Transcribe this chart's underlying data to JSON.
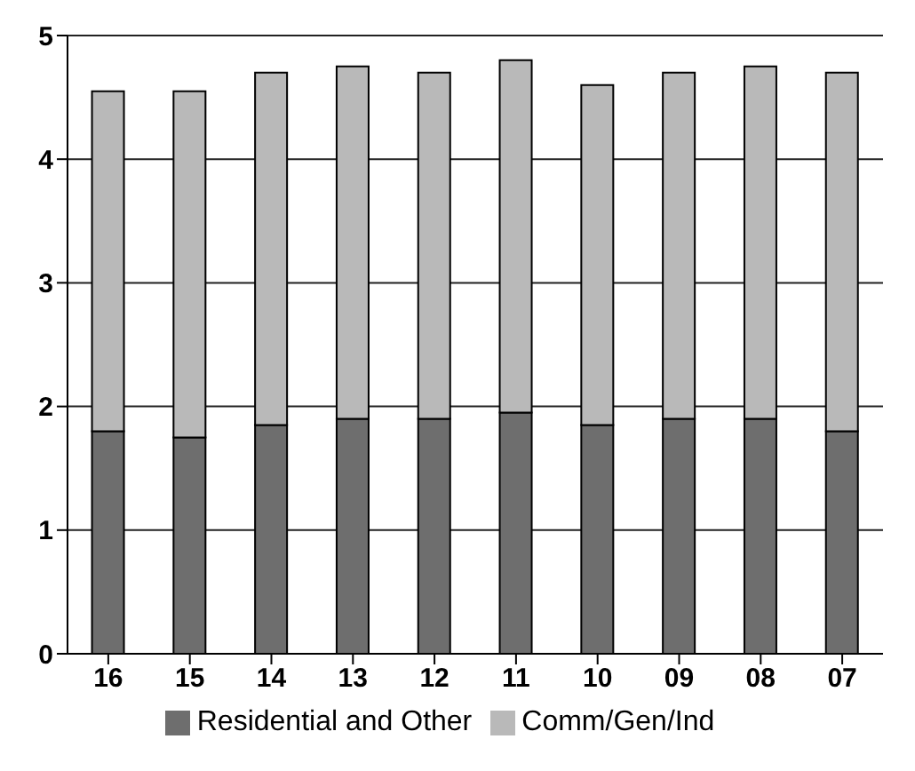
{
  "chart_data": {
    "type": "bar",
    "stacked": true,
    "categories": [
      "16",
      "15",
      "14",
      "13",
      "12",
      "11",
      "10",
      "09",
      "08",
      "07"
    ],
    "series": [
      {
        "name": "Residential and Other",
        "color": "#6e6e6e",
        "values": [
          1.8,
          1.75,
          1.85,
          1.9,
          1.9,
          1.95,
          1.85,
          1.9,
          1.9,
          1.8
        ]
      },
      {
        "name": "Comm/Gen/Ind",
        "color": "#b9b9b9",
        "values": [
          2.75,
          2.8,
          2.85,
          2.85,
          2.8,
          2.85,
          2.75,
          2.8,
          2.85,
          2.9
        ]
      }
    ],
    "ylim": [
      0,
      5
    ],
    "yticks": [
      0,
      1,
      2,
      3,
      4,
      5
    ],
    "grid": "y",
    "legend": "bottom"
  }
}
